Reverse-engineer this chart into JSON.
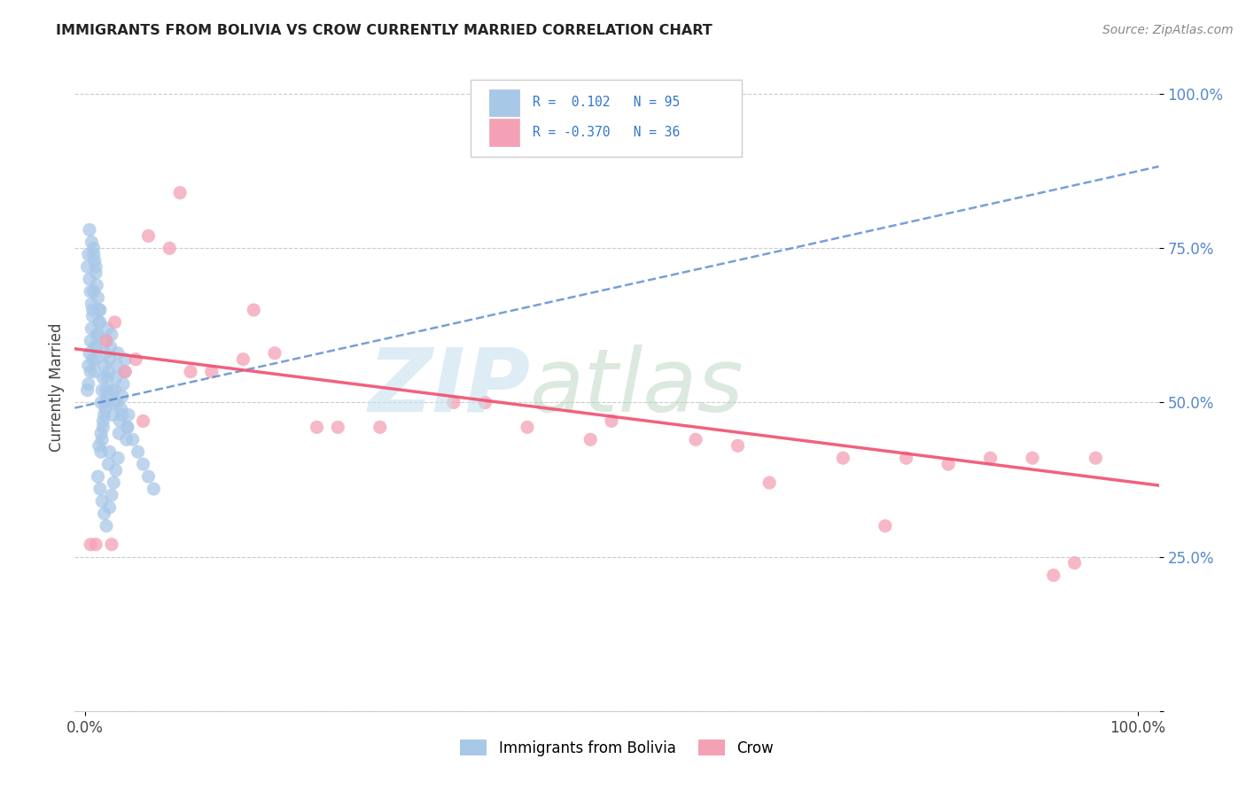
{
  "title": "IMMIGRANTS FROM BOLIVIA VS CROW CURRENTLY MARRIED CORRELATION CHART",
  "source": "Source: ZipAtlas.com",
  "ylabel": "Currently Married",
  "y_tick_labels": [
    "",
    "25.0%",
    "50.0%",
    "75.0%",
    "100.0%"
  ],
  "y_tick_positions": [
    0.0,
    0.25,
    0.5,
    0.75,
    1.0
  ],
  "xlim": [
    -0.01,
    1.02
  ],
  "ylim": [
    0.0,
    1.05
  ],
  "bolivia_color": "#a8c8e8",
  "crow_color": "#f4a0b5",
  "bolivia_line_color": "#5588cc",
  "crow_line_color": "#f05070",
  "bolivia_R": 0.102,
  "bolivia_N": 95,
  "crow_R": -0.37,
  "crow_N": 36,
  "legend_label_bolivia": "Immigrants from Bolivia",
  "legend_label_crow": "Crow",
  "bolivia_intercept": 0.495,
  "bolivia_slope": 0.38,
  "crow_intercept": 0.585,
  "crow_slope": -0.215,
  "bolivia_points_x": [
    0.002,
    0.003,
    0.004,
    0.005,
    0.006,
    0.007,
    0.008,
    0.009,
    0.01,
    0.011,
    0.012,
    0.013,
    0.014,
    0.015,
    0.016,
    0.017,
    0.018,
    0.019,
    0.02,
    0.021,
    0.022,
    0.023,
    0.024,
    0.025,
    0.026,
    0.027,
    0.028,
    0.029,
    0.03,
    0.031,
    0.032,
    0.033,
    0.034,
    0.035,
    0.036,
    0.037,
    0.038,
    0.039,
    0.04,
    0.041,
    0.002,
    0.003,
    0.004,
    0.005,
    0.006,
    0.007,
    0.008,
    0.009,
    0.01,
    0.011,
    0.012,
    0.013,
    0.014,
    0.015,
    0.016,
    0.017,
    0.018,
    0.019,
    0.02,
    0.021,
    0.022,
    0.023,
    0.004,
    0.006,
    0.008,
    0.01,
    0.012,
    0.014,
    0.016,
    0.018,
    0.02,
    0.025,
    0.03,
    0.035,
    0.04,
    0.045,
    0.05,
    0.055,
    0.06,
    0.065,
    0.003,
    0.005,
    0.007,
    0.009,
    0.011,
    0.013,
    0.015,
    0.017,
    0.019,
    0.021,
    0.023,
    0.025,
    0.027,
    0.029,
    0.031
  ],
  "bolivia_points_y": [
    0.52,
    0.56,
    0.58,
    0.6,
    0.62,
    0.65,
    0.68,
    0.55,
    0.57,
    0.59,
    0.61,
    0.63,
    0.65,
    0.5,
    0.52,
    0.54,
    0.56,
    0.58,
    0.6,
    0.62,
    0.55,
    0.57,
    0.59,
    0.61,
    0.48,
    0.5,
    0.52,
    0.54,
    0.56,
    0.58,
    0.45,
    0.47,
    0.49,
    0.51,
    0.53,
    0.55,
    0.57,
    0.44,
    0.46,
    0.48,
    0.72,
    0.74,
    0.7,
    0.68,
    0.66,
    0.64,
    0.75,
    0.73,
    0.71,
    0.69,
    0.67,
    0.65,
    0.63,
    0.42,
    0.44,
    0.46,
    0.48,
    0.5,
    0.52,
    0.54,
    0.4,
    0.42,
    0.78,
    0.76,
    0.74,
    0.72,
    0.38,
    0.36,
    0.34,
    0.32,
    0.3,
    0.52,
    0.5,
    0.48,
    0.46,
    0.44,
    0.42,
    0.4,
    0.38,
    0.36,
    0.53,
    0.55,
    0.57,
    0.59,
    0.61,
    0.43,
    0.45,
    0.47,
    0.49,
    0.51,
    0.33,
    0.35,
    0.37,
    0.39,
    0.41
  ],
  "crow_points_x": [
    0.005,
    0.01,
    0.02,
    0.028,
    0.038,
    0.048,
    0.06,
    0.08,
    0.1,
    0.12,
    0.15,
    0.18,
    0.22,
    0.28,
    0.35,
    0.42,
    0.5,
    0.58,
    0.65,
    0.72,
    0.78,
    0.82,
    0.86,
    0.9,
    0.92,
    0.94,
    0.96,
    0.025,
    0.055,
    0.09,
    0.16,
    0.24,
    0.38,
    0.48,
    0.62,
    0.76
  ],
  "crow_points_y": [
    0.27,
    0.27,
    0.6,
    0.63,
    0.55,
    0.57,
    0.77,
    0.75,
    0.55,
    0.55,
    0.57,
    0.58,
    0.46,
    0.46,
    0.5,
    0.46,
    0.47,
    0.44,
    0.37,
    0.41,
    0.41,
    0.4,
    0.41,
    0.41,
    0.22,
    0.24,
    0.41,
    0.27,
    0.47,
    0.84,
    0.65,
    0.46,
    0.5,
    0.44,
    0.43,
    0.3
  ]
}
